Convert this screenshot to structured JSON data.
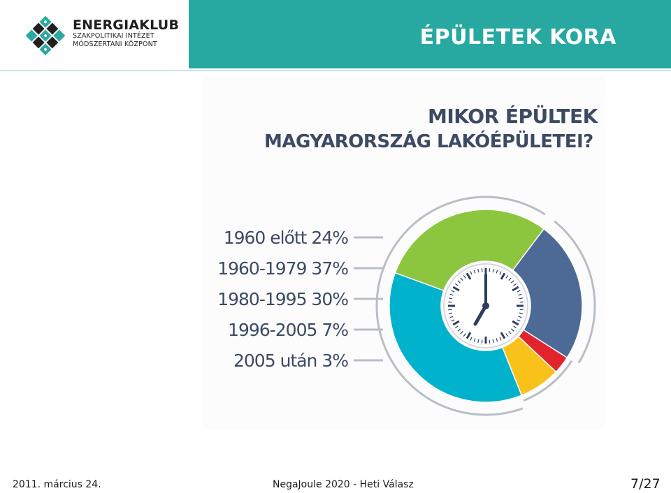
{
  "logo": {
    "name": "ENERGIAKLUB",
    "sub1": "SZAKPOLITIKAI INTÉZET",
    "sub2": "MÓDSZERTANI KÖZPONT"
  },
  "slide": {
    "title": "ÉPÜLETEK KORA"
  },
  "chart_data": {
    "type": "pie",
    "title_line1": "MIKOR ÉPÜLTEK",
    "title_line2": "MAGYARORSZÁG LAKÓÉPÜLETEI?",
    "slices": [
      {
        "label": "1960 előtt 24%",
        "value": 24,
        "color": "#4c6a95"
      },
      {
        "label": "1960-1979 37%",
        "value": 37,
        "color": "#00b2cc"
      },
      {
        "label": "1980-1995 30%",
        "value": 30,
        "color": "#8cc63e"
      },
      {
        "label": "1996-2005 7%",
        "value": 7,
        "color": "#f9c21a"
      },
      {
        "label": "2005 után 3%",
        "value": 3,
        "color": "#e3232c"
      }
    ],
    "clock": {
      "hour": 7,
      "minute": 0
    }
  },
  "footer": {
    "date": "2011. március 24.",
    "center": "NegaJoule 2020 - Heti Válasz",
    "page": "7/27"
  }
}
